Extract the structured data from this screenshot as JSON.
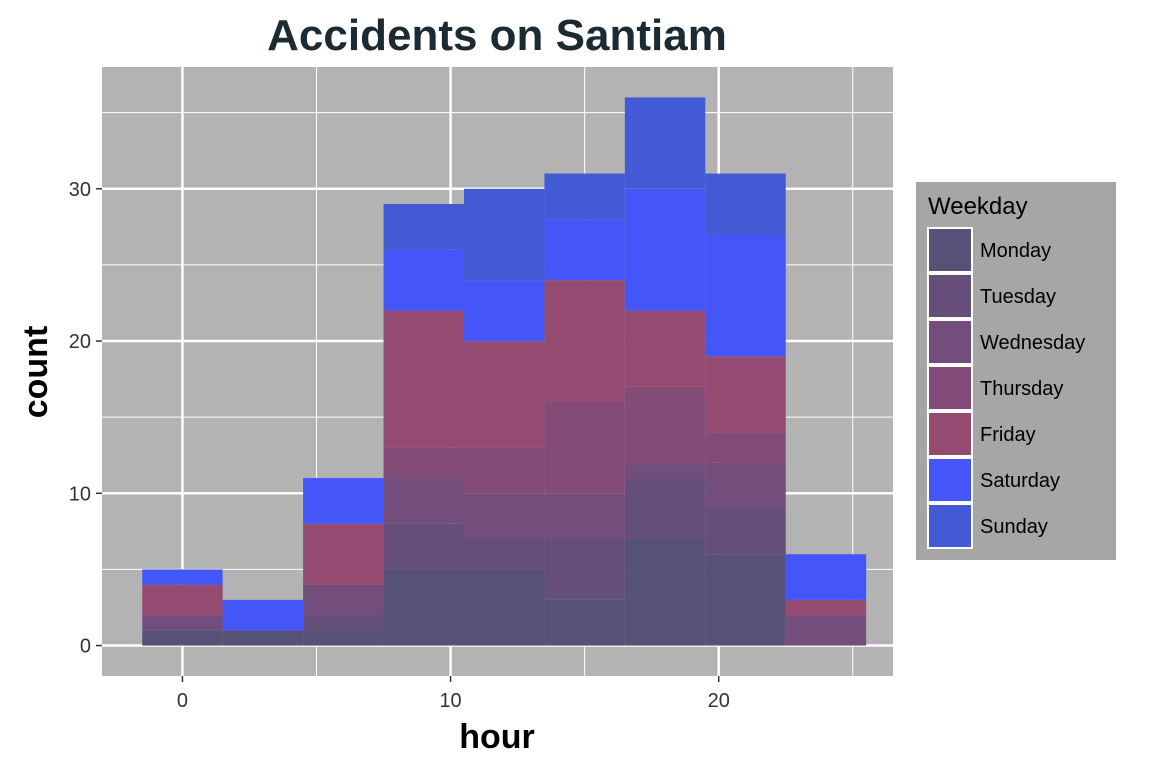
{
  "chart_data": {
    "type": "bar",
    "subtype": "stacked-histogram",
    "title": "Accidents on Santiam",
    "xlabel": "hour",
    "ylabel": "count",
    "bin_width": 3,
    "bin_centers": [
      0,
      3,
      6,
      9,
      12,
      15,
      18,
      21,
      24
    ],
    "xlim": [
      -3,
      26.5
    ],
    "ylim": [
      -2,
      38
    ],
    "x_ticks": [
      0,
      10,
      20
    ],
    "y_ticks": [
      0,
      10,
      20,
      30
    ],
    "grid": true,
    "legend_title": "Weekday",
    "legend_position": "right",
    "series": [
      {
        "name": "Monday",
        "color": "#565176",
        "values": [
          1,
          1,
          1,
          5,
          5,
          3,
          7,
          6,
          0
        ]
      },
      {
        "name": "Tuesday",
        "color": "#654e7a",
        "values": [
          0,
          0,
          1,
          3,
          2,
          4,
          4,
          3,
          0
        ]
      },
      {
        "name": "Wednesday",
        "color": "#734d7b",
        "values": [
          1,
          0,
          2,
          3,
          3,
          3,
          1,
          3,
          2
        ]
      },
      {
        "name": "Thursday",
        "color": "#834b77",
        "values": [
          0,
          0,
          0,
          2,
          3,
          6,
          5,
          2,
          0
        ]
      },
      {
        "name": "Friday",
        "color": "#954a71",
        "values": [
          2,
          0,
          4,
          9,
          7,
          8,
          5,
          5,
          1
        ]
      },
      {
        "name": "Saturday",
        "color": "#4456f7",
        "values": [
          1,
          2,
          3,
          4,
          4,
          4,
          8,
          8,
          3
        ]
      },
      {
        "name": "Sunday",
        "color": "#435ad6",
        "values": [
          0,
          0,
          0,
          3,
          6,
          3,
          6,
          4,
          0
        ]
      }
    ],
    "panel_background": "#b3b3b3",
    "legend_background": "#a6a6a6",
    "title_color": "#1b2a33"
  }
}
